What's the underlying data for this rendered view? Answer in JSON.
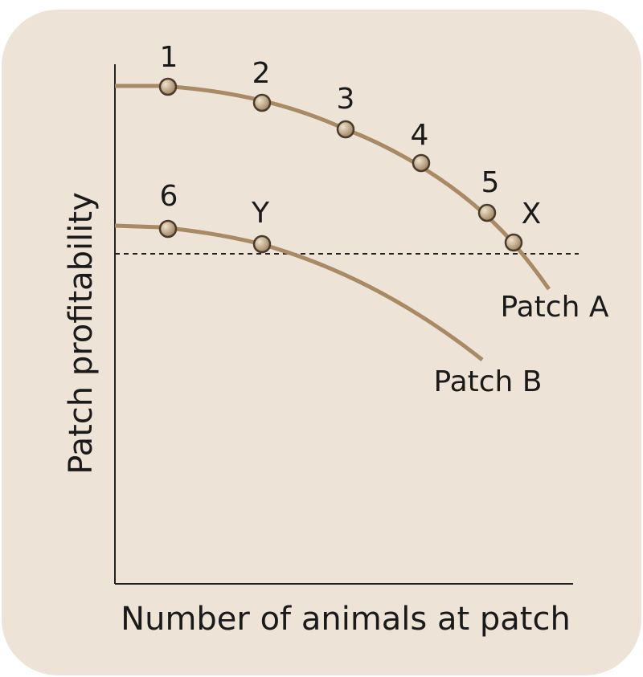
{
  "axes": {
    "x_label": "Number of animals at patch",
    "y_label": "Patch profitability"
  },
  "points": [
    {
      "label": "1"
    },
    {
      "label": "2"
    },
    {
      "label": "3"
    },
    {
      "label": "4"
    },
    {
      "label": "5"
    },
    {
      "label": "X"
    },
    {
      "label": "6"
    },
    {
      "label": "Y"
    }
  ],
  "curves": [
    {
      "label": "Patch A"
    },
    {
      "label": "Patch B"
    }
  ]
}
